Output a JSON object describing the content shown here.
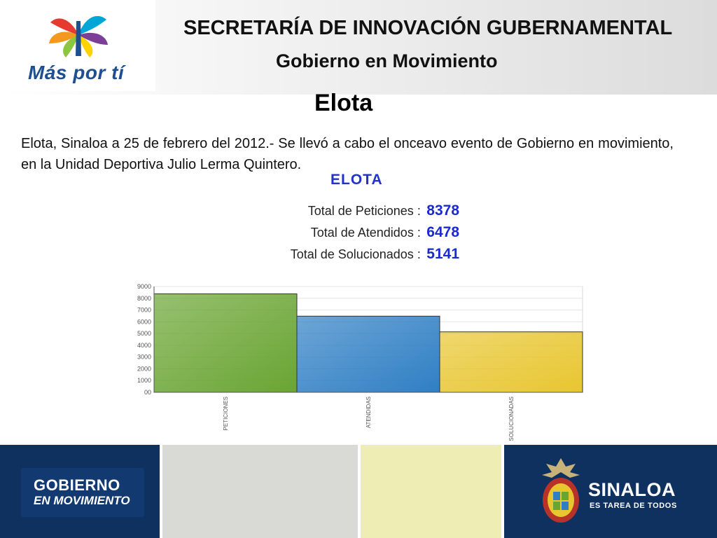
{
  "header": {
    "logo_text": "Más por tí",
    "title": "SECRETARÍA DE INNOVACIÓN GUBERNAMENTAL",
    "subtitle": "Gobierno en Movimiento"
  },
  "page_title": "Elota",
  "body_text": "Elota, Sinaloa a 25 de febrero del 2012.- Se llevó a cabo el onceavo evento de Gobierno en movimiento, en la Unidad Deportiva Julio Lerma Quintero.",
  "stats": {
    "title": "ELOTA",
    "rows": [
      {
        "label": "Total de Peticiones :",
        "value": "8378"
      },
      {
        "label": "Total de Atendidos :",
        "value": "6478"
      },
      {
        "label": "Total de Solucionados :",
        "value": "5141"
      }
    ]
  },
  "chart_data": {
    "type": "bar",
    "categories": [
      "PETICIONES",
      "ATENDIDAS",
      "SOLUCIONADAS"
    ],
    "values": [
      8378,
      6478,
      5141
    ],
    "ylim": [
      0,
      9000
    ],
    "yticks": [
      "00",
      "1000",
      "2000",
      "3000",
      "4000",
      "5000",
      "6000",
      "7000",
      "8000",
      "9000"
    ],
    "grid": true,
    "colors": [
      "#6aa533",
      "#2f7fc4",
      "#e8c630"
    ]
  },
  "footer": {
    "gobierno_line1": "GOBIERNO",
    "gobierno_line2": "EN MOVIMIENTO",
    "sinaloa_line1": "SINALOA",
    "sinaloa_line2": "ES TAREA DE TODOS"
  }
}
